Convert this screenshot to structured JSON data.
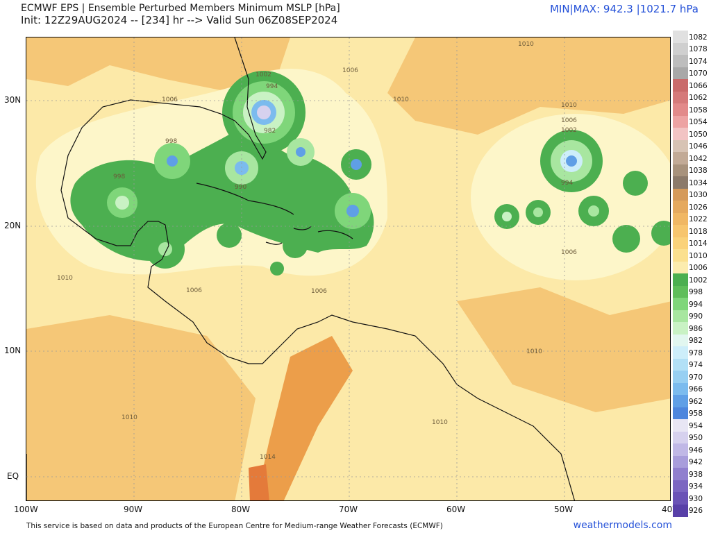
{
  "header": {
    "title": "ECMWF EPS | Ensemble Perturbed Members Minimum MSLP [hPa]",
    "subtitle": "Init: 12Z29AUG2024 -- [234] hr --> Valid Sun 06Z08SEP2024",
    "minmax": "MIN|MAX: 942.3 |1021.7 hPa"
  },
  "map": {
    "lat_labels": [
      "30N",
      "20N",
      "10N",
      "EQ"
    ],
    "lon_labels": [
      "100W",
      "90W",
      "80W",
      "70W",
      "60W",
      "50W",
      "40W"
    ],
    "contour_labels": [
      "1010",
      "1006",
      "1002",
      "994",
      "998",
      "990",
      "982",
      "1014"
    ]
  },
  "colorbar": {
    "labels": [
      "1082",
      "1078",
      "1074",
      "1070",
      "1066",
      "1062",
      "1058",
      "1054",
      "1050",
      "1046",
      "1042",
      "1038",
      "1034",
      "1030",
      "1026",
      "1022",
      "1018",
      "1014",
      "1010",
      "1006",
      "1002",
      "998",
      "994",
      "990",
      "986",
      "982",
      "978",
      "974",
      "970",
      "966",
      "962",
      "958",
      "954",
      "950",
      "946",
      "942",
      "938",
      "934",
      "930",
      "926"
    ],
    "colors": [
      "#e0e0e0",
      "#cfcfcf",
      "#bdbdbd",
      "#a8a8a8",
      "#c96a6a",
      "#d57a7a",
      "#e28a8a",
      "#eda3a3",
      "#f2c4c4",
      "#d7c3b4",
      "#c2aa96",
      "#a8927c",
      "#8c7a6a",
      "#d59a5a",
      "#e5a95e",
      "#f0b764",
      "#f7c56e",
      "#fad27a",
      "#fbe08f",
      "#fcecae",
      "#4caf50",
      "#5fbe5a",
      "#7fd67a",
      "#a8e6a0",
      "#c9f2c4",
      "#e2f7f0",
      "#cdeefa",
      "#b2e0f6",
      "#97cff2",
      "#7bbbee",
      "#5f9fe6",
      "#4d86dd",
      "#e8e6f4",
      "#d6d1ee",
      "#c0b8e6",
      "#a89ddb",
      "#907fce",
      "#7b66c1",
      "#6a53b6",
      "#5840a8"
    ]
  },
  "footer": {
    "note": "This service is based on data and products of the European Centre for Medium-range Weather Forecasts (ECMWF)",
    "brand": "weathermodels.com"
  }
}
